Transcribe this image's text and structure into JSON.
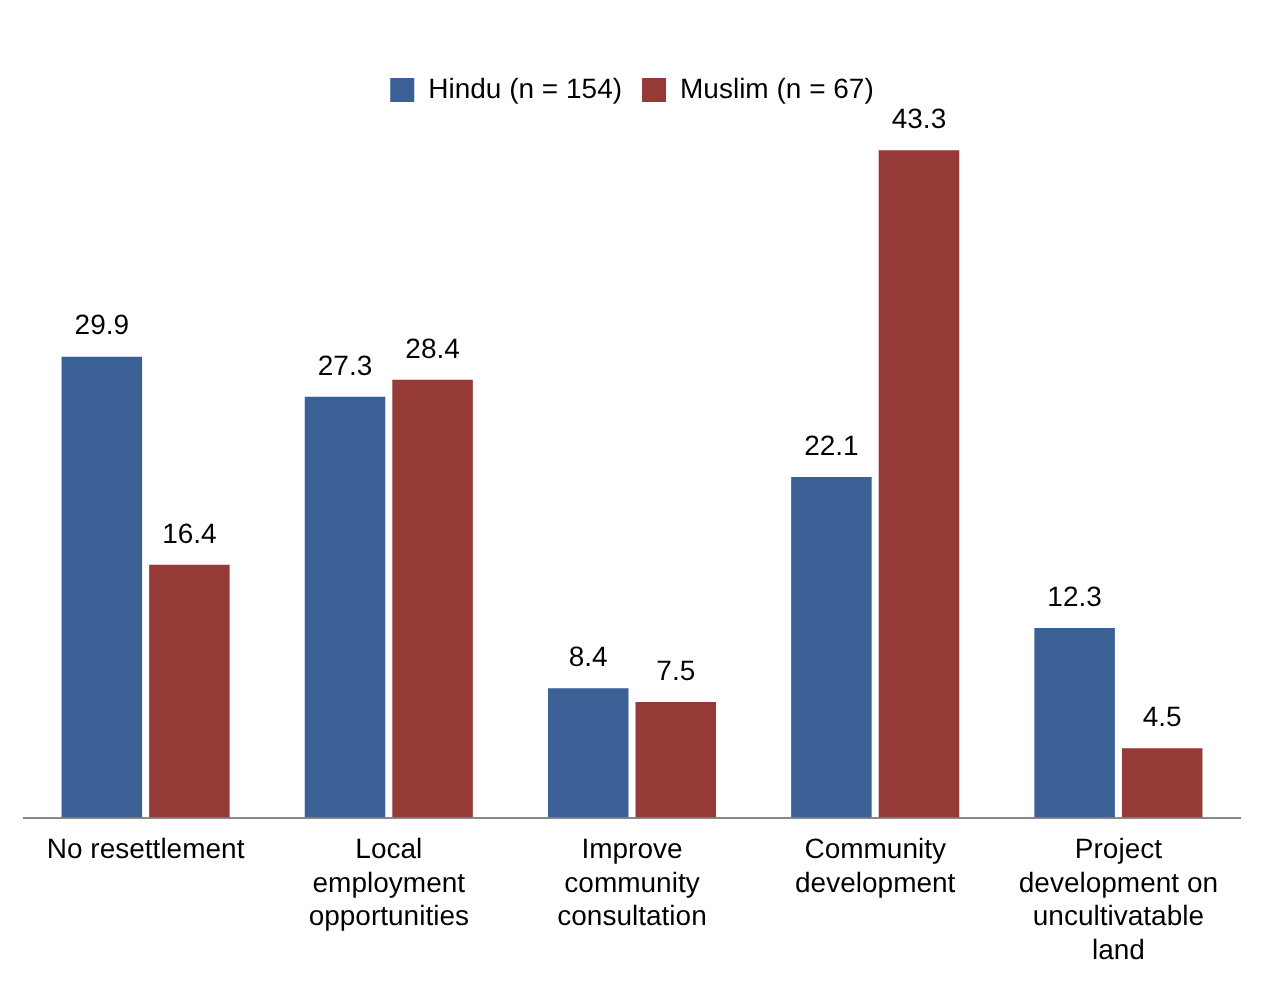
{
  "chart_data": {
    "type": "bar",
    "categories": [
      "No resettlement",
      "Local employment opportunities",
      "Improve community consultation",
      "Community development",
      "Project development on uncultivatable land"
    ],
    "series": [
      {
        "name": "Hindu (n = 154)",
        "color": "#3b6096",
        "values": [
          29.9,
          27.3,
          8.4,
          22.1,
          12.3
        ]
      },
      {
        "name": "Muslim (n = 67)",
        "color": "#953a37",
        "values": [
          16.4,
          28.4,
          7.5,
          43.3,
          4.5
        ]
      }
    ],
    "data_labels": true,
    "legend": "top",
    "grid": false
  }
}
